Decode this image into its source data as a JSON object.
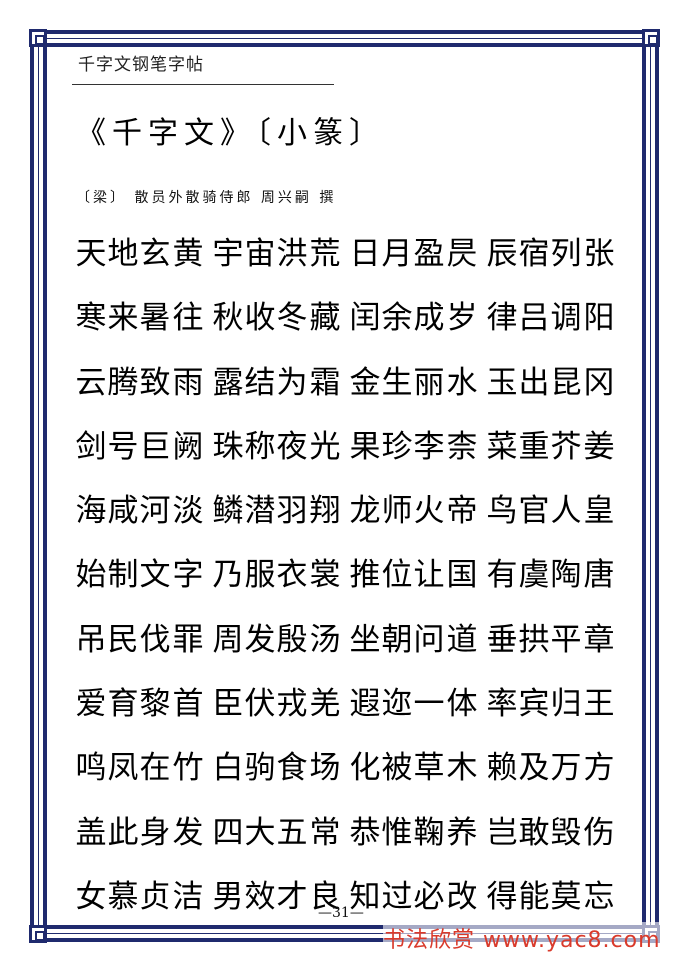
{
  "header": {
    "title": "千字文钢笔字帖"
  },
  "book_title": "《千字文》〔小篆〕",
  "credit": "〔梁〕 散员外散骑侍郎 周兴嗣 撰",
  "rows": [
    [
      "天",
      "地",
      "玄",
      "黄",
      "宇",
      "宙",
      "洪",
      "荒",
      "日",
      "月",
      "盈",
      "昃",
      "辰",
      "宿",
      "列",
      "张"
    ],
    [
      "寒",
      "来",
      "暑",
      "往",
      "秋",
      "收",
      "冬",
      "藏",
      "闰",
      "余",
      "成",
      "岁",
      "律",
      "吕",
      "调",
      "阳"
    ],
    [
      "云",
      "腾",
      "致",
      "雨",
      "露",
      "结",
      "为",
      "霜",
      "金",
      "生",
      "丽",
      "水",
      "玉",
      "出",
      "昆",
      "冈"
    ],
    [
      "剑",
      "号",
      "巨",
      "阙",
      "珠",
      "称",
      "夜",
      "光",
      "果",
      "珍",
      "李",
      "柰",
      "菜",
      "重",
      "芥",
      "姜"
    ],
    [
      "海",
      "咸",
      "河",
      "淡",
      "鳞",
      "潜",
      "羽",
      "翔",
      "龙",
      "师",
      "火",
      "帝",
      "鸟",
      "官",
      "人",
      "皇"
    ],
    [
      "始",
      "制",
      "文",
      "字",
      "乃",
      "服",
      "衣",
      "裳",
      "推",
      "位",
      "让",
      "国",
      "有",
      "虞",
      "陶",
      "唐"
    ],
    [
      "吊",
      "民",
      "伐",
      "罪",
      "周",
      "发",
      "殷",
      "汤",
      "坐",
      "朝",
      "问",
      "道",
      "垂",
      "拱",
      "平",
      "章"
    ],
    [
      "爱",
      "育",
      "黎",
      "首",
      "臣",
      "伏",
      "戎",
      "羌",
      "遐",
      "迩",
      "一",
      "体",
      "率",
      "宾",
      "归",
      "王"
    ],
    [
      "鸣",
      "凤",
      "在",
      "竹",
      "白",
      "驹",
      "食",
      "场",
      "化",
      "被",
      "草",
      "木",
      "赖",
      "及",
      "万",
      "方"
    ],
    [
      "盖",
      "此",
      "身",
      "发",
      "四",
      "大",
      "五",
      "常",
      "恭",
      "惟",
      "鞠",
      "养",
      "岂",
      "敢",
      "毁",
      "伤"
    ],
    [
      "女",
      "慕",
      "贞",
      "洁",
      "男",
      "效",
      "才",
      "良",
      "知",
      "过",
      "必",
      "改",
      "得",
      "能",
      "莫",
      "忘"
    ]
  ],
  "page_number": "—31—",
  "watermark": "书法欣赏 www.yac8.com"
}
